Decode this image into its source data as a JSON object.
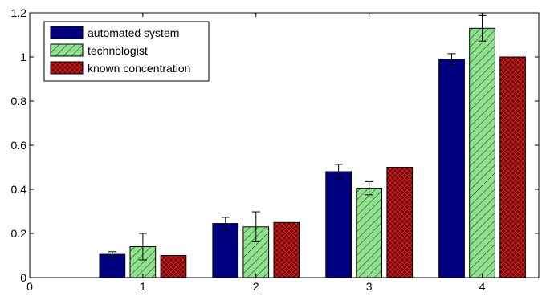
{
  "chart_data": {
    "type": "bar",
    "title": "",
    "xlabel": "",
    "ylabel": "",
    "categories": [
      "1",
      "2",
      "3",
      "4"
    ],
    "xlim": [
      0,
      4.5
    ],
    "ylim": [
      0,
      1.2
    ],
    "x_ticks": [
      "0",
      "1",
      "2",
      "3",
      "4"
    ],
    "y_ticks": [
      "0",
      "0.2",
      "0.4",
      "0.6",
      "0.8",
      "1",
      "1.2"
    ],
    "grid": false,
    "legend_position": "top-left",
    "series": [
      {
        "name": "automated system",
        "color": "#000080",
        "pattern": "solid",
        "values": [
          0.105,
          0.245,
          0.48,
          0.99
        ],
        "error": [
          0.012,
          0.028,
          0.033,
          0.025
        ]
      },
      {
        "name": "technologist",
        "color": "#8ee08e",
        "pattern": "diagonal-hatch",
        "values": [
          0.14,
          0.23,
          0.405,
          1.13
        ],
        "error": [
          0.06,
          0.068,
          0.03,
          0.058
        ]
      },
      {
        "name": "known concentration",
        "color": "#800000",
        "pattern": "crosshatch",
        "values": [
          0.1,
          0.25,
          0.5,
          1.0
        ],
        "error": [
          0,
          0,
          0,
          0
        ]
      }
    ]
  }
}
